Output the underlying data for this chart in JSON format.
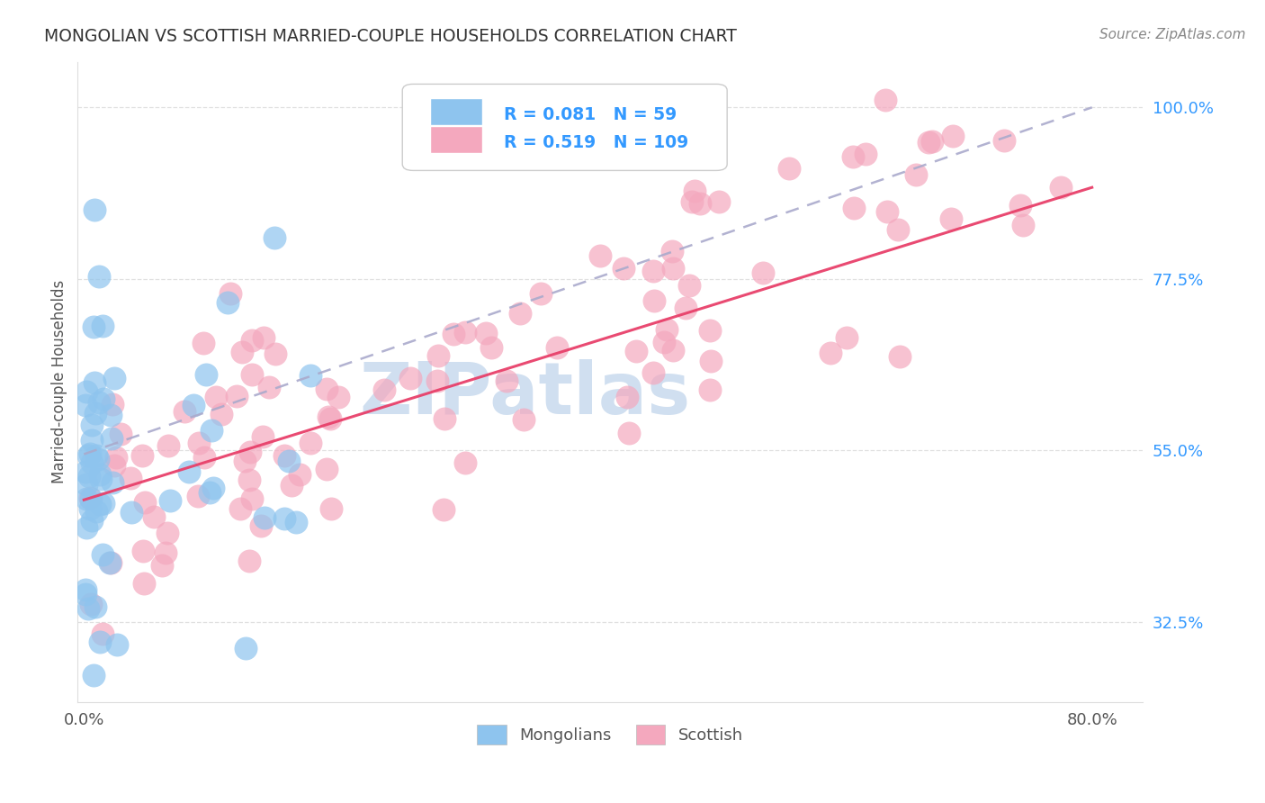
{
  "title": "MONGOLIAN VS SCOTTISH MARRIED-COUPLE HOUSEHOLDS CORRELATION CHART",
  "source": "Source: ZipAtlas.com",
  "ylabel": "Married-couple Households",
  "ytick_positions": [
    0.325,
    0.55,
    0.775,
    1.0
  ],
  "ytick_labels": [
    "32.5%",
    "55.0%",
    "77.5%",
    "100.0%"
  ],
  "xtick_positions": [
    0.0,
    0.8
  ],
  "xtick_labels": [
    "0.0%",
    "80.0%"
  ],
  "xlim": [
    -0.005,
    0.84
  ],
  "ylim": [
    0.22,
    1.06
  ],
  "mongolian_R": 0.081,
  "mongolian_N": 59,
  "scottish_R": 0.519,
  "scottish_N": 109,
  "mongolian_color": "#8EC4EE",
  "scottish_color": "#F4A8BE",
  "mongolian_line_color": "#AAAACC",
  "scottish_line_color": "#E8406A",
  "label_color": "#3399FF",
  "title_color": "#333333",
  "source_color": "#888888",
  "grid_color": "#DDDDDD",
  "watermark": "ZIPatlas",
  "watermark_color": "#D0DFF0",
  "background_color": "#FFFFFF",
  "legend_box_color": "#F5F5F5",
  "legend_edge_color": "#CCCCCC"
}
